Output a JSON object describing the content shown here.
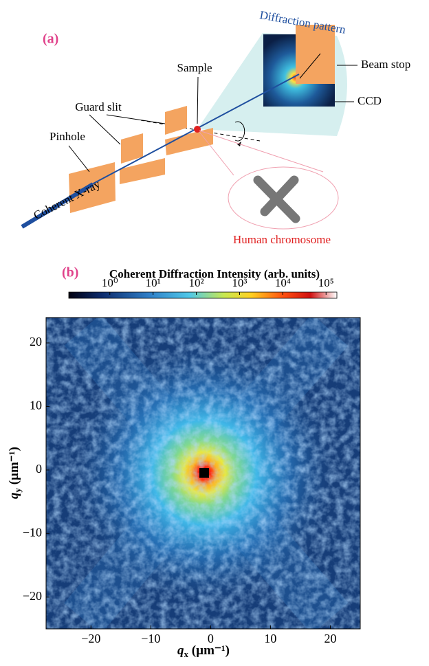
{
  "panel_a": {
    "label": "(a)",
    "diffraction_pattern": "Diffraction pattern",
    "beam_stop": "Beam stop",
    "ccd": "CCD",
    "sample": "Sample",
    "guard_slit": "Guard slit",
    "pinhole": "Pinhole",
    "xray": "Coherent X-ray",
    "chromosome": "Human chromosome"
  },
  "panel_b": {
    "label": "(b)",
    "colorbar": {
      "title": "Coherent Diffraction Intensity (arb. units)",
      "lim": [
        -0.95,
        5.25
      ],
      "ticks": [
        {
          "value": 0,
          "label": "10⁰"
        },
        {
          "value": 1,
          "label": "10¹"
        },
        {
          "value": 2,
          "label": "10²"
        },
        {
          "value": 3,
          "label": "10³"
        },
        {
          "value": 4,
          "label": "10⁴"
        },
        {
          "value": 5,
          "label": "10⁵"
        }
      ]
    },
    "xlabel": {
      "symbol": "q",
      "sub": "x",
      "unit": " (µm⁻¹)"
    },
    "ylabel": {
      "symbol": "q",
      "sub": "y",
      "unit": " (µm⁻¹)"
    },
    "xlim": [
      -27.5,
      25
    ],
    "ylim": [
      -25,
      24
    ],
    "xticks": [
      {
        "value": -20,
        "label": "−20"
      },
      {
        "value": -10,
        "label": "−10"
      },
      0,
      10,
      20
    ],
    "yticks": [
      {
        "value": -20,
        "label": "−20"
      },
      {
        "value": -10,
        "label": "−10"
      },
      0,
      10,
      20
    ]
  }
}
